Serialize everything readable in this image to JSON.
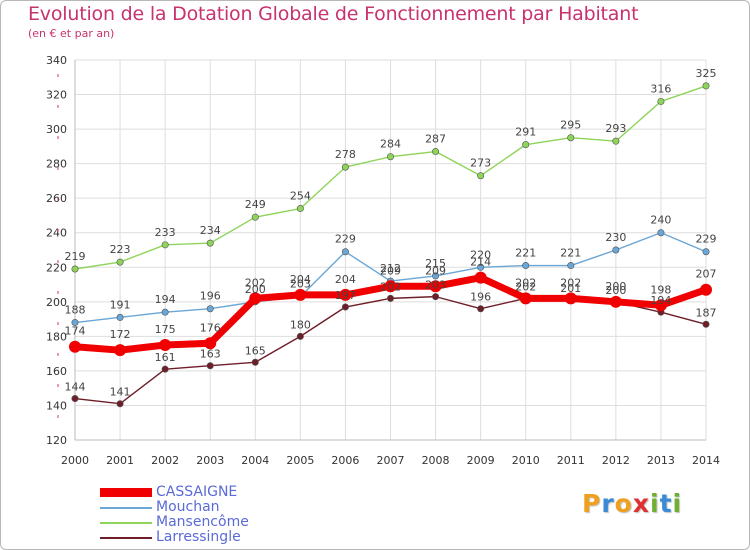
{
  "title": "Evolution de la Dotation Globale de Fonctionnement par Habitant",
  "subtitle": "(en € et par an)",
  "logo": {
    "text": "Proxiti",
    "letters": [
      "P",
      "r",
      "o",
      "x",
      "i",
      "t",
      "i"
    ],
    "colors": [
      "#f0a020",
      "#3a8ad6",
      "#f0a020",
      "#e03030",
      "#70b030",
      "#3a8ad6",
      "#70b030"
    ]
  },
  "chart_data": {
    "type": "line",
    "title": "Evolution de la Dotation Globale de Fonctionnement par Habitant",
    "subtitle": "(en € et par an)",
    "x": [
      "2000",
      "2001",
      "2002",
      "2003",
      "2004",
      "2005",
      "2006",
      "2007",
      "2008",
      "2009",
      "2010",
      "2011",
      "2012",
      "2013",
      "2014"
    ],
    "ylim": [
      120,
      340
    ],
    "yticks": [
      "120",
      "140",
      "160",
      "180",
      "200",
      "220",
      "240",
      "260",
      "280",
      "300",
      "320",
      "340"
    ],
    "grid": true,
    "legend_position": "bottom-left",
    "series": [
      {
        "name": "Larressingle",
        "color": "#6e1e28",
        "values": [
          144,
          141,
          161,
          163,
          165,
          180,
          197,
          202,
          203,
          196,
          202,
          201,
          200,
          194,
          187
        ],
        "labels": [
          "144",
          "141",
          "161",
          "163",
          "165",
          "180",
          "197",
          "202",
          "203",
          "196",
          "202",
          "201",
          "200",
          "194",
          "187"
        ]
      },
      {
        "name": "Mansencôme",
        "color": "#8ed45a",
        "values": [
          219,
          223,
          233,
          234,
          249,
          254,
          278,
          284,
          287,
          273,
          291,
          295,
          293,
          316,
          325
        ],
        "labels": [
          "219",
          "223",
          "233",
          "234",
          "249",
          "254",
          "278",
          "284",
          "287",
          "273",
          "291",
          "295",
          "293",
          "316",
          "325"
        ]
      },
      {
        "name": "Mouchan",
        "color": "#6aa6d6",
        "values": [
          188,
          191,
          194,
          196,
          200,
          203,
          229,
          212,
          215,
          220,
          221,
          221,
          230,
          240,
          229
        ],
        "labels": [
          "188",
          "191",
          "194",
          "196",
          "200",
          "203",
          "229",
          "212",
          "215",
          "220",
          "221",
          "221",
          "230",
          "240",
          "229"
        ]
      },
      {
        "name": "CASSAIGNE",
        "color": "#f00000",
        "values": [
          174,
          172,
          175,
          176,
          202,
          204,
          204,
          209,
          209,
          214,
          202,
          202,
          200,
          198,
          207
        ],
        "labels": [
          "174",
          "172",
          "175",
          "176",
          "202",
          "204",
          "204",
          "209",
          "209",
          "214",
          "202",
          "202",
          "200",
          "198",
          "207"
        ]
      }
    ],
    "legend": [
      {
        "name": "CASSAIGNE",
        "color": "#f00000",
        "text_color": "#5a6ad8"
      },
      {
        "name": "Mouchan",
        "color": "#6aa6d6",
        "text_color": "#5a6ad8"
      },
      {
        "name": "Mansencôme",
        "color": "#8ed45a",
        "text_color": "#5a6ad8"
      },
      {
        "name": "Larressingle",
        "color": "#6e1e28",
        "text_color": "#5a6ad8"
      }
    ]
  }
}
